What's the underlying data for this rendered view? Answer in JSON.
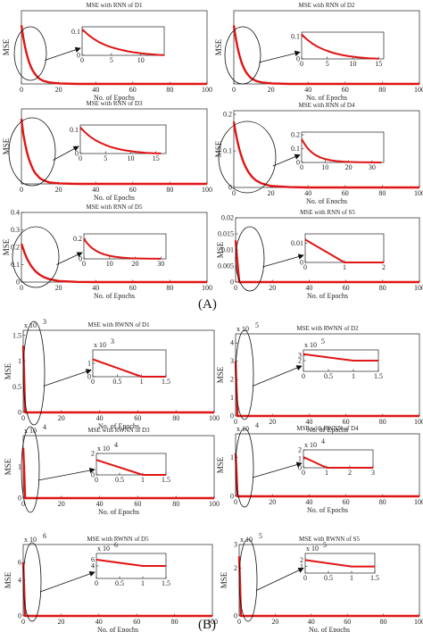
{
  "figure": {
    "label_a": "(A)",
    "label_b": "(B)"
  },
  "chart_data": [
    {
      "type": "line",
      "title": "MSE with RNN of D1",
      "xlabel": "No. of Epochs",
      "ylabel": "MSE",
      "xlim": [
        0,
        100
      ],
      "ylim": [
        0,
        0.15
      ],
      "xticks": [
        0,
        20,
        40,
        60,
        80,
        100
      ],
      "yticks": [],
      "series": [
        {
          "x": [
            0,
            1,
            2,
            3,
            4,
            5,
            6,
            7,
            8,
            9,
            10,
            11,
            12,
            15,
            20,
            30,
            40,
            60,
            80,
            100
          ],
          "y": [
            0.12,
            0.095,
            0.075,
            0.059,
            0.046,
            0.036,
            0.028,
            0.022,
            0.017,
            0.013,
            0.01,
            0.008,
            0.006,
            0.003,
            0.001,
            0,
            0,
            0,
            0,
            0
          ]
        }
      ],
      "inset": {
        "xlim": [
          0,
          14
        ],
        "ylim": [
          0,
          0.12
        ],
        "xticks": [
          0,
          5,
          10
        ],
        "yticks": [
          "0",
          "0.1"
        ],
        "series": [
          {
            "x": [
              0,
              1,
              2,
              3,
              4,
              5,
              6,
              7,
              8,
              9,
              10,
              11,
              12,
              13,
              14
            ],
            "y": [
              0.11,
              0.087,
              0.069,
              0.054,
              0.043,
              0.034,
              0.027,
              0.021,
              0.016,
              0.012,
              0.009,
              0.006,
              0.004,
              0.002,
              0.001
            ]
          }
        ]
      }
    },
    {
      "type": "line",
      "title": "MSE with RNN of D2",
      "xlabel": "No. of Epochs",
      "ylabel": "MSE",
      "xlim": [
        0,
        100
      ],
      "ylim": [
        0,
        0.15
      ],
      "xticks": [
        0,
        20,
        40,
        60,
        80,
        100
      ],
      "yticks": [],
      "series": [
        {
          "x": [
            0,
            1,
            2,
            3,
            4,
            5,
            6,
            7,
            8,
            9,
            10,
            12,
            15,
            20,
            30,
            40,
            60,
            80,
            100
          ],
          "y": [
            0.12,
            0.095,
            0.075,
            0.059,
            0.046,
            0.036,
            0.028,
            0.022,
            0.017,
            0.013,
            0.01,
            0.006,
            0.003,
            0.001,
            0,
            0,
            0,
            0,
            0
          ]
        }
      ],
      "inset": {
        "xlim": [
          0,
          16
        ],
        "ylim": [
          0,
          0.12
        ],
        "xticks": [
          0,
          5,
          10,
          15
        ],
        "yticks": [
          "0",
          "0.1"
        ],
        "series": [
          {
            "x": [
              0,
              1,
              2,
              3,
              4,
              5,
              6,
              7,
              8,
              9,
              10,
              11,
              12,
              13,
              14,
              15
            ],
            "y": [
              0.11,
              0.088,
              0.07,
              0.056,
              0.045,
              0.036,
              0.028,
              0.022,
              0.017,
              0.013,
              0.01,
              0.007,
              0.005,
              0.003,
              0.002,
              0.001
            ]
          }
        ]
      }
    },
    {
      "type": "line",
      "title": "MSE with RNN of D3",
      "xlabel": "No. of Epochs",
      "ylabel": "MSE",
      "xlim": [
        0,
        100
      ],
      "ylim": [
        0,
        0.15
      ],
      "xticks": [
        0,
        20,
        40,
        60,
        80,
        100
      ],
      "yticks": [],
      "series": [
        {
          "x": [
            0,
            1,
            2,
            3,
            4,
            5,
            6,
            7,
            8,
            9,
            10,
            12,
            15,
            20,
            30,
            40,
            60,
            80,
            100
          ],
          "y": [
            0.13,
            0.1,
            0.08,
            0.063,
            0.05,
            0.04,
            0.031,
            0.024,
            0.019,
            0.015,
            0.011,
            0.007,
            0.003,
            0.001,
            0,
            0,
            0,
            0,
            0
          ]
        }
      ],
      "inset": {
        "xlim": [
          0,
          17
        ],
        "ylim": [
          0,
          0.12
        ],
        "xticks": [
          0,
          5,
          10,
          15
        ],
        "yticks": [
          "0",
          "0.1"
        ],
        "series": [
          {
            "x": [
              0,
              1,
              2,
              3,
              4,
              5,
              6,
              7,
              8,
              9,
              10,
              11,
              12,
              13,
              14,
              15,
              16
            ],
            "y": [
              0.11,
              0.088,
              0.07,
              0.056,
              0.045,
              0.036,
              0.028,
              0.022,
              0.017,
              0.013,
              0.01,
              0.007,
              0.005,
              0.003,
              0.002,
              0.001,
              0.0005
            ]
          }
        ]
      }
    },
    {
      "type": "line",
      "title": "MSE with RNN of D4",
      "xlabel": "No. of Enochs",
      "ylabel": "MSE",
      "xlim": [
        0,
        100
      ],
      "ylim": [
        0,
        0.21
      ],
      "xticks": [
        0,
        20,
        40,
        60,
        80,
        100
      ],
      "yticks": [
        "0",
        "0.1",
        "0.2"
      ],
      "series": [
        {
          "x": [
            0,
            1,
            2,
            3,
            4,
            5,
            6,
            7,
            8,
            10,
            12,
            15,
            20,
            30,
            40,
            60,
            80,
            100
          ],
          "y": [
            0.18,
            0.15,
            0.125,
            0.104,
            0.087,
            0.072,
            0.06,
            0.05,
            0.041,
            0.028,
            0.019,
            0.011,
            0.004,
            0.001,
            0,
            0,
            0,
            0
          ]
        }
      ],
      "inset": {
        "xlim": [
          0,
          35
        ],
        "ylim": [
          0,
          0.22
        ],
        "xticks": [
          0,
          10,
          20,
          30
        ],
        "yticks": [
          "0",
          "0.1",
          "0.2"
        ],
        "series": [
          {
            "x": [
              0,
              1,
              2,
              3,
              4,
              5,
              6,
              8,
              10,
              12,
              15,
              18,
              20,
              25,
              30,
              34
            ],
            "y": [
              0.17,
              0.14,
              0.115,
              0.095,
              0.078,
              0.064,
              0.053,
              0.036,
              0.025,
              0.017,
              0.01,
              0.006,
              0.004,
              0.002,
              0.001,
              0
            ]
          }
        ]
      }
    },
    {
      "type": "line",
      "title": "MSE with RNN of D5",
      "xlabel": "No. of Epochs",
      "ylabel": "MSE",
      "xlim": [
        0,
        100
      ],
      "ylim": [
        0,
        0.4
      ],
      "xticks": [
        0,
        20,
        40,
        60,
        80,
        100
      ],
      "yticks": [
        "0",
        "0.1",
        "0.2",
        "0.3",
        "0.4"
      ],
      "series": [
        {
          "x": [
            0,
            1,
            2,
            3,
            4,
            5,
            6,
            7,
            8,
            10,
            12,
            15,
            20,
            30,
            40,
            60,
            80,
            100
          ],
          "y": [
            0.22,
            0.19,
            0.16,
            0.135,
            0.115,
            0.097,
            0.082,
            0.069,
            0.058,
            0.041,
            0.029,
            0.017,
            0.006,
            0.001,
            0,
            0,
            0,
            0
          ]
        }
      ],
      "inset": {
        "xlim": [
          0,
          32
        ],
        "ylim": [
          0,
          0.25
        ],
        "xticks": [
          0,
          10,
          20,
          30
        ],
        "yticks": [
          "0",
          "0.2"
        ],
        "series": [
          {
            "x": [
              0,
              1,
              2,
              3,
              4,
              5,
              6,
              8,
              10,
              12,
              15,
              18,
              20,
              25,
              30
            ],
            "y": [
              0.2,
              0.165,
              0.136,
              0.112,
              0.093,
              0.077,
              0.064,
              0.044,
              0.031,
              0.021,
              0.012,
              0.007,
              0.005,
              0.002,
              0.001
            ]
          }
        ]
      }
    },
    {
      "type": "line",
      "title": "MSE with RNN of S5",
      "xlabel": "No. of Epochs",
      "ylabel": "MSE",
      "xlim": [
        0,
        100
      ],
      "ylim": [
        0,
        0.02
      ],
      "xticks": [
        0,
        20,
        40,
        60,
        80,
        100
      ],
      "yticks": [
        "0",
        "0.005",
        "0.01",
        "0.015",
        "0.02"
      ],
      "series": [
        {
          "x": [
            0,
            1,
            2,
            100
          ],
          "y": [
            0.013,
            0.006,
            0,
            0
          ]
        }
      ],
      "inset": {
        "xlim": [
          0,
          2
        ],
        "ylim": [
          0,
          0.015
        ],
        "xticks": [
          0,
          1,
          2
        ],
        "yticks": [
          "0",
          "0.01"
        ],
        "series": [
          {
            "x": [
              0,
              1,
              2
            ],
            "y": [
              0.012,
              0,
              0
            ]
          }
        ]
      }
    },
    {
      "type": "line",
      "title": "MSE with RWNN of D1",
      "xlabel": "No. of Epochs",
      "ylabel": "MSE",
      "exponent": "x 10",
      "exponent_power": "3",
      "xlim": [
        0,
        100
      ],
      "ylim": [
        0,
        1.6
      ],
      "xticks": [
        0,
        20,
        40,
        60,
        80,
        100
      ],
      "yticks": [
        "0",
        "0.5",
        "1",
        "1.5"
      ],
      "series": [
        {
          "x": [
            0,
            0.5,
            1,
            100
          ],
          "y": [
            1.3,
            0.7,
            0,
            0
          ]
        }
      ],
      "inset": {
        "xlim": [
          0,
          1.5
        ],
        "ylim": [
          0,
          2
        ],
        "xticks": [
          "0",
          "0.5",
          "1",
          "1.5"
        ],
        "yticks": [
          "0",
          "1"
        ],
        "exponent": "x 10",
        "exponent_power": "3",
        "series": [
          {
            "x": [
              0,
              1,
              1.5
            ],
            "y": [
              1.3,
              0,
              0
            ]
          }
        ]
      }
    },
    {
      "type": "line",
      "title": "MSE with RWNN of D2",
      "xlabel": "No. of Epochs",
      "ylabel": "MSE",
      "exponent": "x 10",
      "exponent_power": "5",
      "xlim": [
        0,
        100
      ],
      "ylim": [
        0,
        4.5
      ],
      "xticks": [
        0,
        20,
        40,
        60,
        80,
        100
      ],
      "yticks": [
        "0",
        "1",
        "2",
        "3",
        "4"
      ],
      "series": [
        {
          "x": [
            0,
            0.5,
            1,
            100
          ],
          "y": [
            3.0,
            1.5,
            0,
            0
          ]
        }
      ],
      "inset": {
        "xlim": [
          0,
          1.5
        ],
        "ylim": [
          0,
          4
        ],
        "xticks": [
          "0",
          "0.5",
          "1",
          "1.5"
        ],
        "yticks": [
          "2",
          "3"
        ],
        "exponent": "x 10",
        "exponent_power": "5",
        "series": [
          {
            "x": [
              0,
              1,
              1.5
            ],
            "y": [
              3.2,
              2.0,
              2.0
            ]
          }
        ]
      }
    },
    {
      "type": "line",
      "title": "MSE with RWNN of D3",
      "xlabel": "No. of Epochs",
      "ylabel": "MSE",
      "exponent": "x 10",
      "exponent_power": "4",
      "xlim": [
        0,
        100
      ],
      "ylim": [
        0,
        2
      ],
      "xticks": [
        0,
        20,
        40,
        60,
        80,
        100
      ],
      "yticks": [
        "0",
        "1"
      ],
      "series": [
        {
          "x": [
            0,
            0.5,
            1,
            100
          ],
          "y": [
            1.6,
            0.9,
            0,
            0
          ]
        }
      ],
      "inset": {
        "xlim": [
          0,
          1.5
        ],
        "ylim": [
          0,
          2
        ],
        "xticks": [
          "0",
          "0.5",
          "1",
          "1.5"
        ],
        "yticks": [
          "0",
          "2"
        ],
        "exponent": "x 10",
        "exponent_power": "4",
        "series": [
          {
            "x": [
              0,
              1,
              1.5
            ],
            "y": [
              1.4,
              0,
              0
            ]
          }
        ]
      }
    },
    {
      "type": "line",
      "title": "MSE with RWNN of D4",
      "xlabel": "No. of Epochs",
      "ylabel": "MSE",
      "exponent": "x 10",
      "exponent_power": "4",
      "xlim": [
        0,
        100
      ],
      "ylim": [
        0,
        1.6
      ],
      "xticks": [
        0,
        20,
        40,
        60,
        80,
        100
      ],
      "yticks": [
        "0",
        "1"
      ],
      "series": [
        {
          "x": [
            0,
            0.5,
            1,
            100
          ],
          "y": [
            1.1,
            0.6,
            0,
            0
          ]
        }
      ],
      "inset": {
        "xlim": [
          0,
          3
        ],
        "ylim": [
          0,
          2
        ],
        "xticks": [
          "0",
          "1",
          "2",
          "3"
        ],
        "yticks": [
          "0",
          "1",
          "2"
        ],
        "exponent": "x 10",
        "exponent_power": "4",
        "series": [
          {
            "x": [
              0,
              1,
              3
            ],
            "y": [
              1.2,
              0,
              0
            ]
          }
        ]
      }
    },
    {
      "type": "line",
      "title": "MSE with RWNN of D5",
      "xlabel": "No. of Epochs",
      "ylabel": "MSE",
      "exponent": "x 10",
      "exponent_power": "6",
      "xlim": [
        0,
        100
      ],
      "ylim": [
        0,
        8
      ],
      "xticks": [
        0,
        20,
        40,
        60,
        80,
        100
      ],
      "yticks": [
        "0",
        "4",
        "6"
      ],
      "series": [
        {
          "x": [
            0,
            0.5,
            1,
            100
          ],
          "y": [
            6.0,
            3.0,
            0,
            0
          ]
        }
      ],
      "inset": {
        "xlim": [
          0,
          1.5
        ],
        "ylim": [
          0,
          8
        ],
        "xticks": [
          "0",
          "0.5",
          "1",
          "1.5"
        ],
        "yticks": [
          "4",
          "6"
        ],
        "exponent": "x 10",
        "exponent_power": "6",
        "series": [
          {
            "x": [
              0,
              1,
              1.5
            ],
            "y": [
              6.0,
              4.0,
              4.0
            ]
          }
        ]
      }
    },
    {
      "type": "line",
      "title": "MSE with RWNN of S5",
      "xlabel": "No. of Epochs",
      "ylabel": "MSE",
      "exponent": "x 10",
      "exponent_power": "5",
      "xlim": [
        0,
        100
      ],
      "ylim": [
        0,
        3
      ],
      "xticks": [
        0,
        20,
        40,
        60,
        80,
        100
      ],
      "yticks": [
        "0",
        "2",
        "3"
      ],
      "series": [
        {
          "x": [
            0,
            0.5,
            1,
            100
          ],
          "y": [
            2.5,
            1.3,
            0,
            0
          ]
        }
      ],
      "inset": {
        "xlim": [
          0,
          1.5
        ],
        "ylim": [
          0,
          3
        ],
        "xticks": [
          "0",
          "0.5",
          "1",
          "1.5"
        ],
        "yticks": [
          "1",
          "2"
        ],
        "exponent": "x 10",
        "exponent_power": "5",
        "series": [
          {
            "x": [
              0,
              1,
              1.5
            ],
            "y": [
              2.0,
              1.0,
              1.0
            ]
          }
        ]
      }
    }
  ],
  "colors": {
    "line": "#e01515",
    "axis": "#222222",
    "ellipse": "#111111",
    "arrow": "#111111"
  }
}
